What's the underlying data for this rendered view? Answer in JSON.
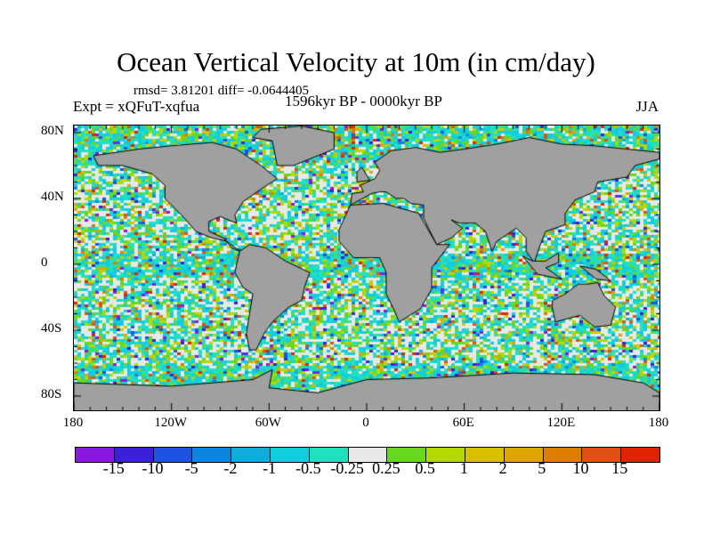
{
  "title": "Ocean Vertical Velocity at 10m (in cm/day)",
  "stats": "rmsd= 3.81201 diff= -0.0644405",
  "experiment": "Expt = xQFuT-xqfua",
  "period": "1596kyr BP - 0000kyr BP",
  "season": "JJA",
  "y_ticks": [
    {
      "label": "80N",
      "lat": 80
    },
    {
      "label": "40N",
      "lat": 40
    },
    {
      "label": "0",
      "lat": 0
    },
    {
      "label": "40S",
      "lat": -40
    },
    {
      "label": "80S",
      "lat": -80
    }
  ],
  "x_ticks": [
    {
      "label": "180",
      "lon": -180
    },
    {
      "label": "120W",
      "lon": -120
    },
    {
      "label": "60W",
      "lon": -60
    },
    {
      "label": "0",
      "lon": 0
    },
    {
      "label": "60E",
      "lon": 60
    },
    {
      "label": "120E",
      "lon": 120
    },
    {
      "label": "180",
      "lon": 180
    }
  ],
  "colorbar": {
    "labels": [
      "-15",
      "-10",
      "-5",
      "-2",
      "-1",
      "-0.5",
      "-0.25",
      "0.25",
      "0.5",
      "1",
      "2",
      "5",
      "10",
      "15"
    ],
    "colors": [
      "#8a18e0",
      "#3a20d8",
      "#1e52e0",
      "#0a86e0",
      "#10acdc",
      "#12cce0",
      "#20e0c0",
      "#e8e8e8",
      "#66d820",
      "#b4d800",
      "#d8c000",
      "#e0a400",
      "#e07c00",
      "#e05010",
      "#e02400"
    ]
  },
  "land_color": "#a0a0a0"
}
